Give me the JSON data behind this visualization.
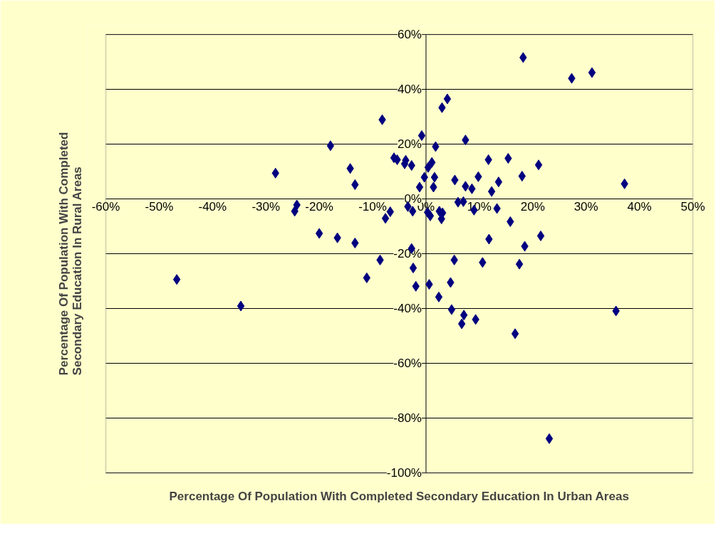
{
  "chart_data": {
    "type": "scatter",
    "xlabel": "Percentage Of Population With Completed Secondary Education In Urban Areas",
    "ylabel": "Percentage Of Population With Completed\nSecondary Education In Rural Areas",
    "xlim": [
      -60,
      50
    ],
    "ylim": [
      -100,
      60
    ],
    "xticks": [
      {
        "value": -60,
        "label": "-60%"
      },
      {
        "value": -50,
        "label": "-50%"
      },
      {
        "value": -40,
        "label": "-40%"
      },
      {
        "value": -30,
        "label": "-30%"
      },
      {
        "value": -20,
        "label": "-20%"
      },
      {
        "value": -10,
        "label": "-10%"
      },
      {
        "value": 0,
        "label": "0%"
      },
      {
        "value": 10,
        "label": "10%"
      },
      {
        "value": 20,
        "label": "20%"
      },
      {
        "value": 30,
        "label": "30%"
      },
      {
        "value": 40,
        "label": "40%"
      },
      {
        "value": 50,
        "label": "50%"
      }
    ],
    "yticks": [
      {
        "value": -100,
        "label": "-100%"
      },
      {
        "value": -80,
        "label": "-80%"
      },
      {
        "value": -60,
        "label": "-60%"
      },
      {
        "value": -40,
        "label": "-40%"
      },
      {
        "value": -20,
        "label": "-20%"
      },
      {
        "value": 0,
        "label": "0%"
      },
      {
        "value": 20,
        "label": "20%"
      },
      {
        "value": 40,
        "label": "40%"
      },
      {
        "value": 60,
        "label": "60%"
      }
    ],
    "grid": "y",
    "marker": "diamond",
    "series": [
      {
        "color": "#000080",
        "x": [
          18.2,
          27.3,
          31.1,
          4.0,
          3.0,
          -8.2,
          -0.8,
          7.4,
          1.8,
          -17.9,
          11.7,
          15.4,
          21.1,
          -14.2,
          -28.2,
          -6.0,
          -5.4,
          -3.8,
          -4.0,
          -2.7,
          0.4,
          1.1,
          1.6,
          -0.3,
          -1.2,
          1.4,
          5.4,
          7.4,
          8.6,
          9.8,
          18.0,
          13.6,
          12.3,
          -13.3,
          37.2,
          -24.2,
          -24.6,
          -6.7,
          -7.6,
          -3.4,
          -2.5,
          0.3,
          0.8,
          2.5,
          3.1,
          2.9,
          6.0,
          7.0,
          9.0,
          13.3,
          15.8,
          -20.0,
          -16.6,
          -13.3,
          -2.7,
          -8.6,
          -2.4,
          -11.1,
          -1.9,
          0.6,
          2.4,
          4.6,
          5.3,
          4.8,
          7.1,
          6.7,
          9.3,
          11.8,
          10.6,
          21.5,
          18.5,
          17.5,
          16.7,
          -46.7,
          -34.7,
          35.6,
          23.1
        ],
        "values": [
          51.6,
          44.0,
          46.1,
          36.5,
          33.3,
          28.9,
          23.1,
          21.5,
          19.1,
          19.4,
          14.3,
          14.8,
          12.4,
          11.1,
          9.4,
          15.0,
          14.3,
          14.1,
          12.8,
          12.2,
          11.5,
          13.3,
          7.9,
          7.9,
          4.3,
          4.3,
          6.9,
          4.6,
          3.7,
          8.1,
          8.3,
          6.2,
          2.7,
          5.2,
          5.5,
          -2.2,
          -4.5,
          -4.7,
          -7.1,
          -2.8,
          -4.5,
          -4.9,
          -6.2,
          -4.5,
          -5.1,
          -7.3,
          -1.2,
          -1.0,
          -4.1,
          -3.5,
          -8.3,
          -12.6,
          -14.2,
          -16.1,
          -18.1,
          -22.3,
          -25.2,
          -28.8,
          -31.9,
          -31.2,
          -35.8,
          -30.5,
          -22.3,
          -40.4,
          -42.4,
          -45.6,
          -44.0,
          -14.7,
          -23.2,
          -13.5,
          -17.3,
          -23.8,
          -49.2,
          -29.4,
          -39.1,
          -40.9,
          -87.5
        ]
      }
    ]
  }
}
